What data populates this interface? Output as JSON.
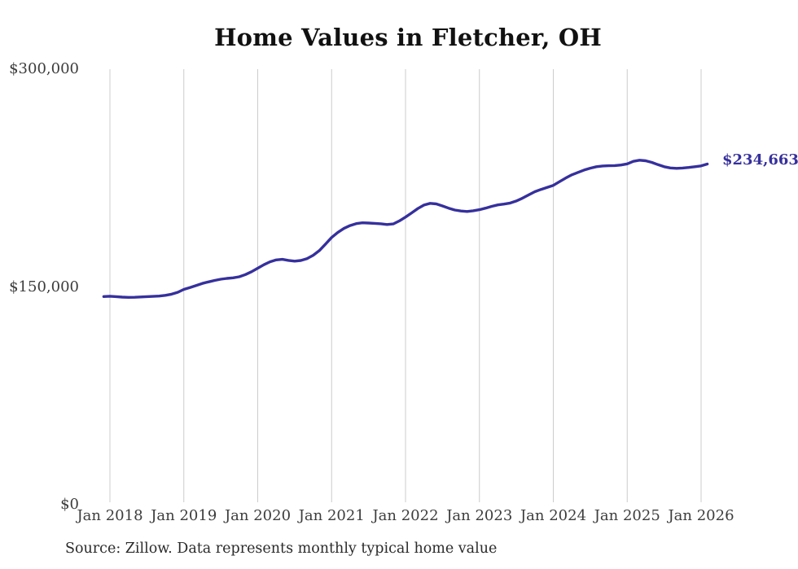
{
  "title": "Home Values in Fletcher, OH",
  "source_note": "Source: Zillow. Data represents monthly typical home value",
  "chart_data": {
    "type": "line",
    "title": "Home Values in Fletcher, OH",
    "xlabel": "",
    "ylabel": "",
    "ylim": [
      0,
      300000
    ],
    "grid": "vertical-only",
    "grid_color": "#cccccc",
    "legend": "none",
    "x_tick_labels": [
      "Jan 2018",
      "Jan 2019",
      "Jan 2020",
      "Jan 2021",
      "Jan 2022",
      "Jan 2023",
      "Jan 2024",
      "Jan 2025",
      "Jan 2026"
    ],
    "y_ticks": [
      {
        "label": "$300,000",
        "value": 300000
      },
      {
        "label": "$150,000",
        "value": 150000
      },
      {
        "label": "$0",
        "value": 0
      }
    ],
    "end_label": "$234,663",
    "latest_value": 234663,
    "start_month": "2017-12",
    "frequency": "monthly",
    "series": [
      {
        "name": "Monthly typical home value",
        "color": "#36309d",
        "values": [
          143400,
          143600,
          143300,
          143000,
          142800,
          142900,
          143100,
          143300,
          143500,
          143700,
          144200,
          145000,
          146300,
          148300,
          149600,
          151000,
          152400,
          153500,
          154500,
          155300,
          155900,
          156300,
          157000,
          158500,
          160500,
          162900,
          165300,
          167300,
          168600,
          169000,
          168300,
          167800,
          168200,
          169500,
          171800,
          175000,
          179500,
          184100,
          187500,
          190300,
          192300,
          193600,
          194200,
          194000,
          193800,
          193500,
          193000,
          193400,
          195500,
          198100,
          201000,
          204000,
          206400,
          207600,
          207200,
          205800,
          204300,
          203000,
          202300,
          202000,
          202500,
          203200,
          204300,
          205500,
          206500,
          207100,
          207800,
          209200,
          211200,
          213400,
          215600,
          217200,
          218600,
          220000,
          222500,
          225000,
          227200,
          228900,
          230500,
          231800,
          232800,
          233300,
          233500,
          233600,
          234000,
          234800,
          236500,
          237300,
          236900,
          235800,
          234200,
          232800,
          232000,
          231700,
          231900,
          232300,
          232800,
          233400,
          234663
        ]
      }
    ]
  }
}
